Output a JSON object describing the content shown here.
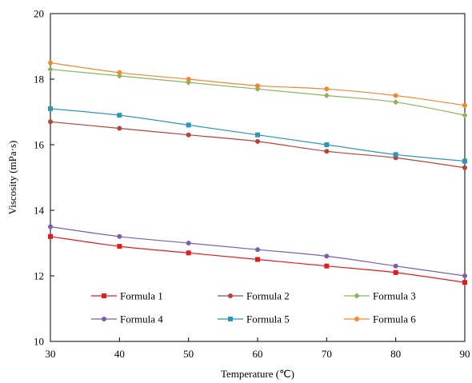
{
  "chart_data": {
    "type": "line",
    "xlabel": "Temperature (℃)",
    "ylabel": "Viscosity (mPa·s)",
    "xlim": [
      30,
      90
    ],
    "ylim": [
      10,
      20
    ],
    "x_ticks": [
      "30",
      "40",
      "50",
      "60",
      "70",
      "80",
      "90"
    ],
    "y_ticks": [
      "10",
      "12",
      "14",
      "16",
      "18",
      "20"
    ],
    "x": [
      30,
      40,
      50,
      60,
      70,
      80,
      90
    ],
    "grid": false,
    "legend_position": "bottom-inside",
    "series": [
      {
        "name": "Formula 1",
        "color": "#e8191b",
        "marker": "square",
        "values": [
          13.2,
          12.9,
          12.7,
          12.5,
          12.3,
          12.1,
          11.8
        ]
      },
      {
        "name": "Formula 2",
        "color": "#b5433b",
        "marker": "circle",
        "values": [
          16.7,
          16.5,
          16.3,
          16.1,
          15.8,
          15.6,
          15.3
        ]
      },
      {
        "name": "Formula 3",
        "color": "#8db35a",
        "marker": "diamond",
        "values": [
          18.3,
          18.1,
          17.9,
          17.7,
          17.5,
          17.3,
          16.9
        ]
      },
      {
        "name": "Formula 4",
        "color": "#7e5fa6",
        "marker": "circle",
        "values": [
          13.5,
          13.2,
          13.0,
          12.8,
          12.6,
          12.3,
          12.0
        ]
      },
      {
        "name": "Formula 5",
        "color": "#2e97b5",
        "marker": "square",
        "values": [
          17.1,
          16.9,
          16.6,
          16.3,
          16.0,
          15.7,
          15.5
        ]
      },
      {
        "name": "Formula 6",
        "color": "#f0892f",
        "marker": "circle",
        "values": [
          18.5,
          18.2,
          18.0,
          17.8,
          17.7,
          17.5,
          17.2
        ]
      }
    ]
  }
}
